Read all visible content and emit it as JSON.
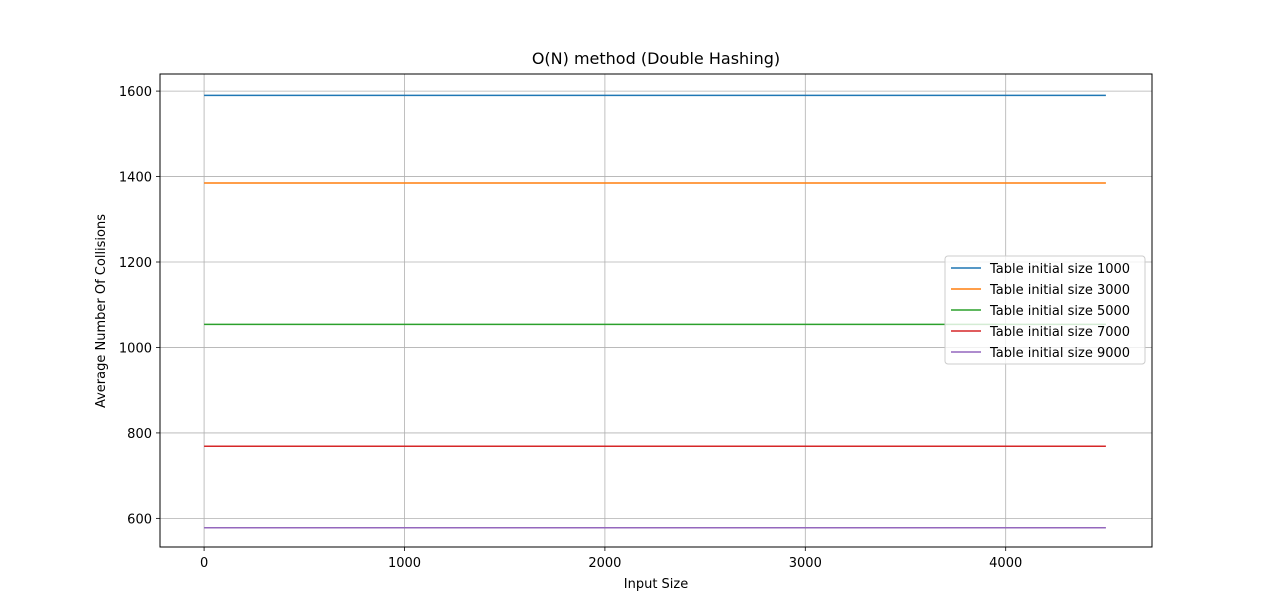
{
  "chart_data": {
    "type": "line",
    "title": "O(N) method (Double Hashing)",
    "xlabel": "Input Size",
    "ylabel": "Average Number Of Collisions",
    "xlim": [
      -220,
      4730
    ],
    "ylim": [
      533,
      1640
    ],
    "xticks": [
      0,
      1000,
      2000,
      3000,
      4000
    ],
    "yticks": [
      600,
      800,
      1000,
      1200,
      1400,
      1600
    ],
    "grid": true,
    "legend_position": "center-right",
    "x": [
      0,
      4500
    ],
    "series": [
      {
        "name": "Table initial size 1000",
        "color": "#1f77b4",
        "values": [
          1590,
          1590
        ]
      },
      {
        "name": "Table initial size 3000",
        "color": "#ff7f0e",
        "values": [
          1385,
          1385
        ]
      },
      {
        "name": "Table initial size 5000",
        "color": "#2ca02c",
        "values": [
          1054,
          1054
        ]
      },
      {
        "name": "Table initial size 7000",
        "color": "#d62728",
        "values": [
          769,
          769
        ]
      },
      {
        "name": "Table initial size 9000",
        "color": "#9467bd",
        "values": [
          578,
          578
        ]
      }
    ]
  }
}
